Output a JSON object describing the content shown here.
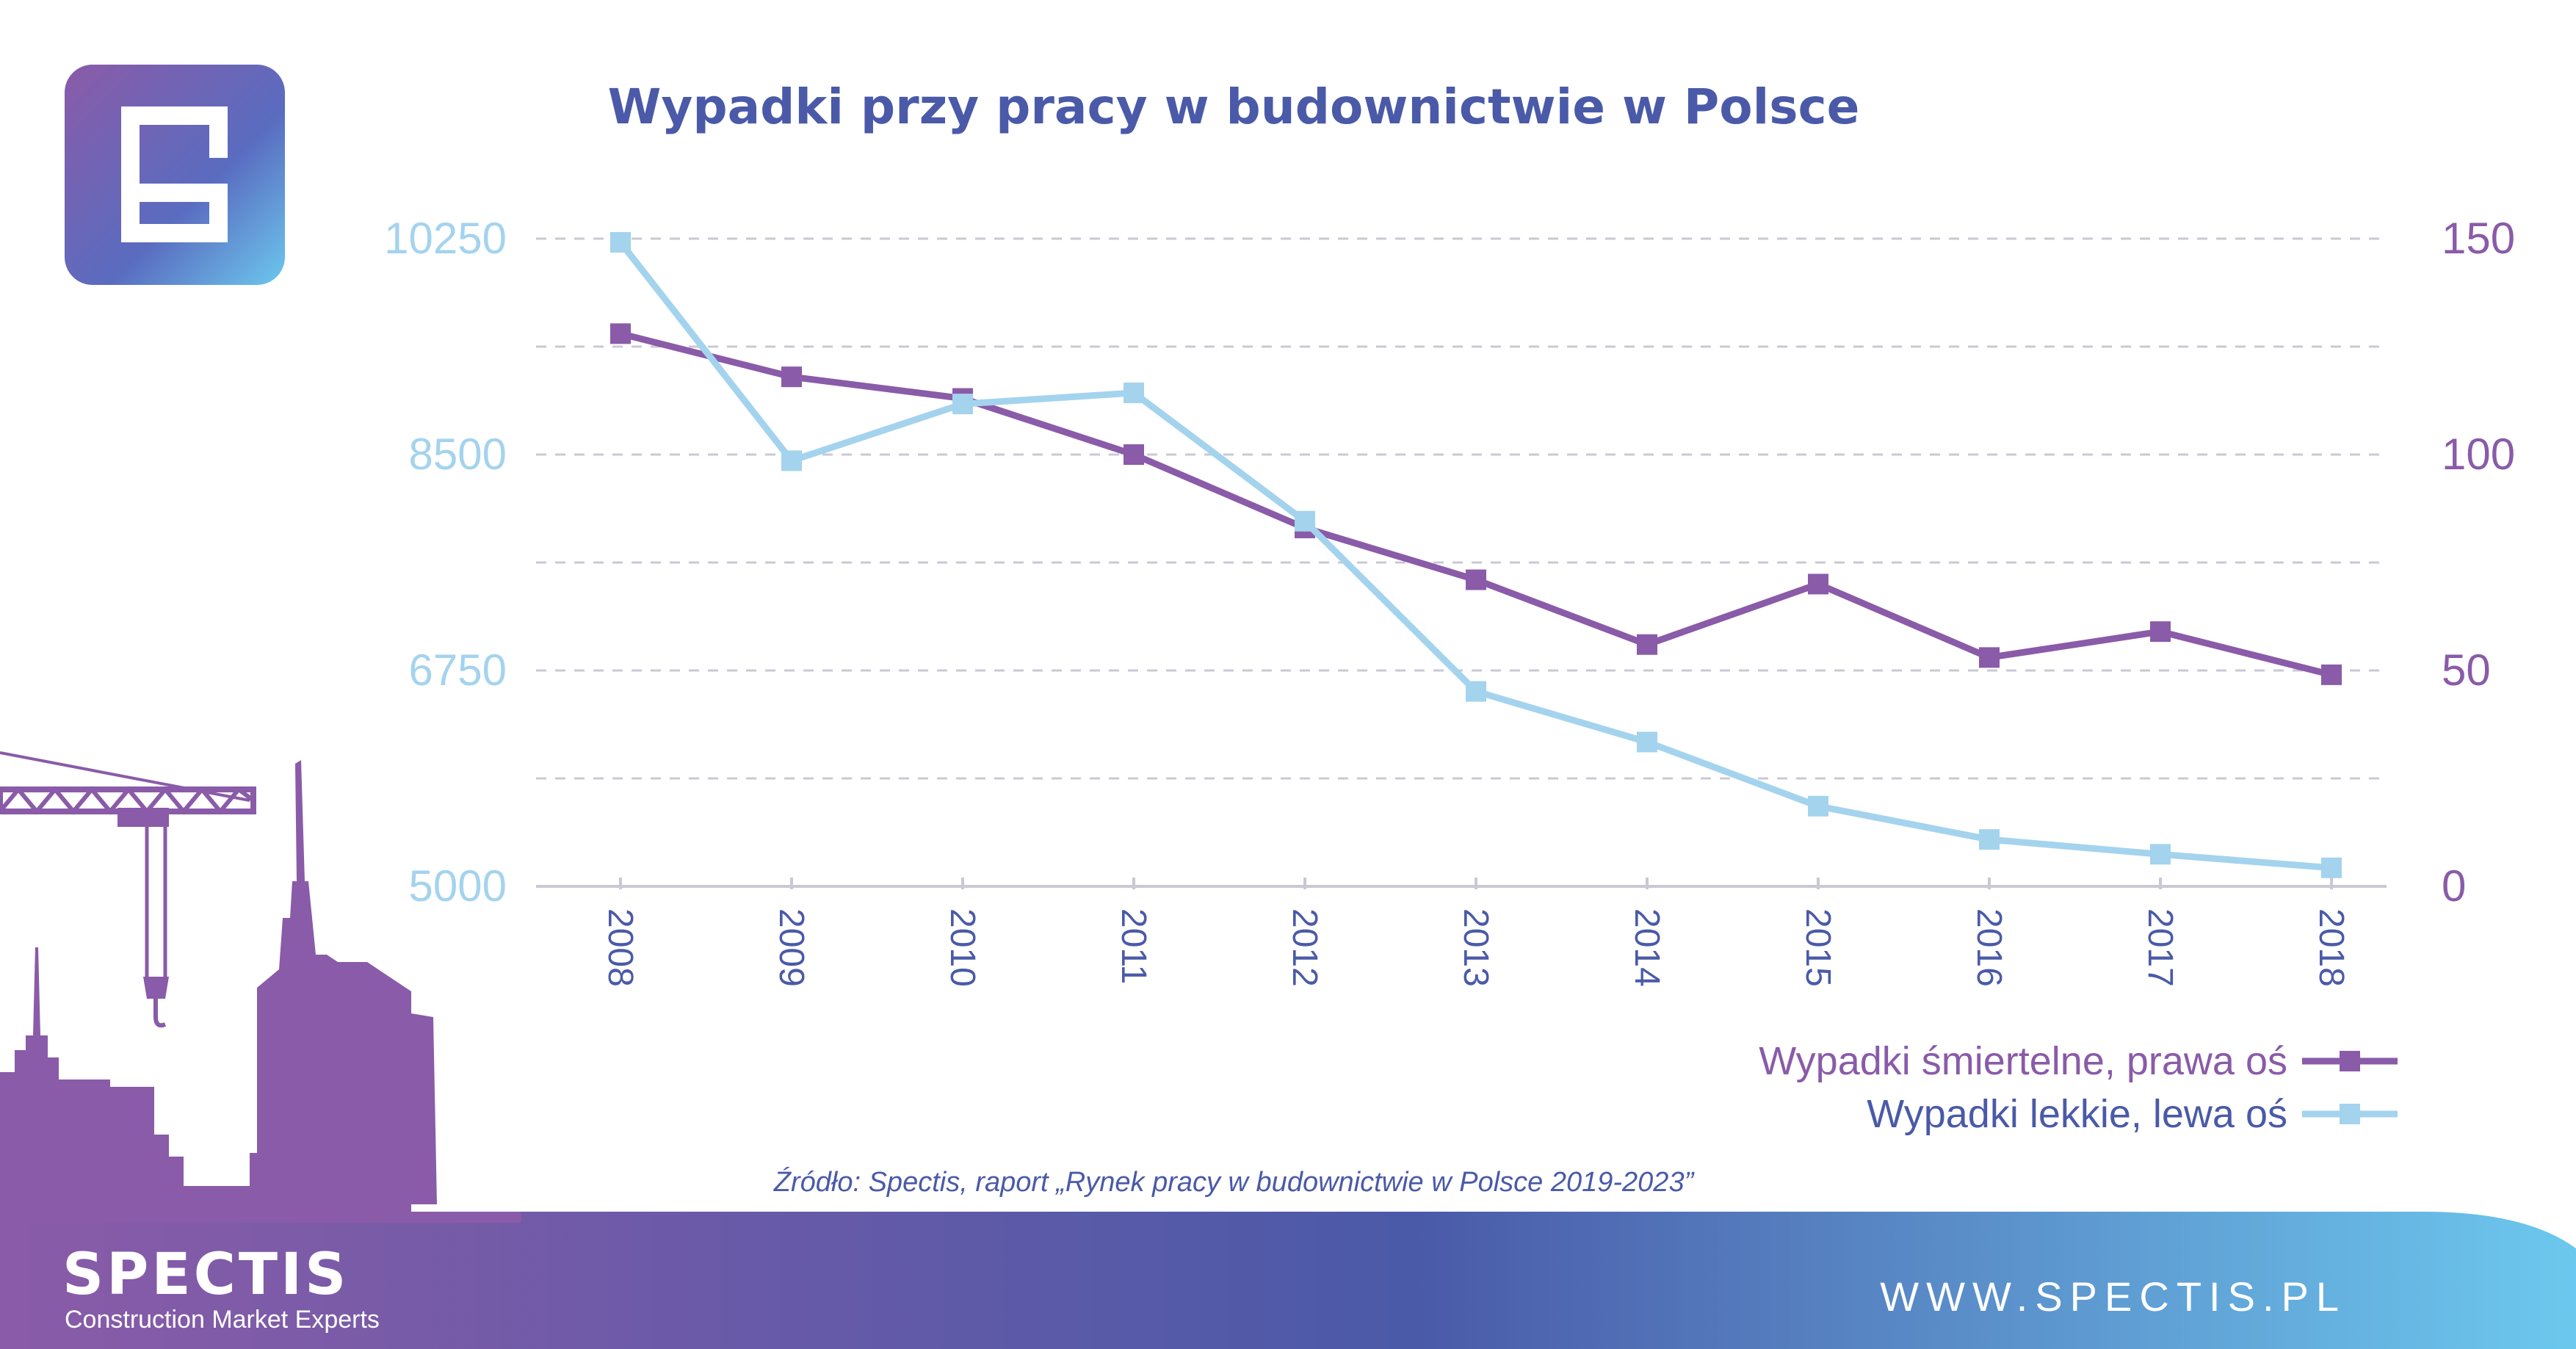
{
  "chart_data": {
    "type": "line",
    "title": "Wypadki przy pracy w budownictwie w Polsce",
    "categories": [
      "2008",
      "2009",
      "2010",
      "2011",
      "2012",
      "2013",
      "2014",
      "2015",
      "2016",
      "2017",
      "2018"
    ],
    "left_axis": {
      "ticks": [
        "10250",
        "8500",
        "6750",
        "5000"
      ],
      "range": [
        5000,
        10250
      ]
    },
    "right_axis": {
      "ticks": [
        "150",
        "100",
        "50",
        "0"
      ],
      "range": [
        0,
        150
      ]
    },
    "grid": true,
    "legend_position": "bottom-right",
    "series": [
      {
        "name": "Wypadki śmiertelne, prawa oś",
        "axis": "right",
        "color": "#8a5ba8",
        "values": [
          128,
          118,
          113,
          100,
          83,
          71,
          56,
          70,
          53,
          59,
          49
        ]
      },
      {
        "name": "Wypadki lekkie, lewa oś",
        "axis": "left",
        "color": "#a4d3ee",
        "values": [
          10220,
          8450,
          8910,
          9000,
          7960,
          6580,
          6170,
          5650,
          5380,
          5260,
          5150
        ]
      }
    ],
    "source_note": "Źródło: Spectis, raport „Rynek pracy w budownictwie w Polsce 2019-2023”"
  },
  "branding": {
    "logo_text": "SPECTIS",
    "tagline": "Construction Market Experts",
    "website": "WWW.SPECTIS.PL"
  },
  "colors": {
    "title": "#4a5aa8",
    "left_axis": "#a4d3ee",
    "right_axis": "#8a5ba8",
    "x_axis_labels": "#4a5aa8",
    "gridline": "#c9c9d3"
  }
}
